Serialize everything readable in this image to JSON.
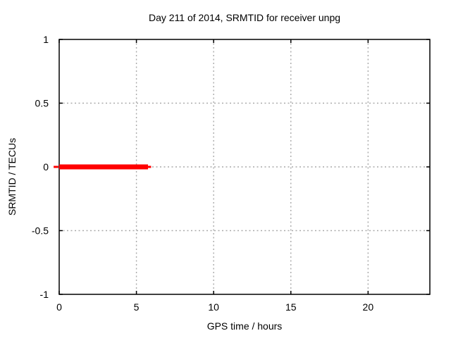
{
  "chart_data": {
    "type": "line",
    "title": "Day 211 of 2014, SRMTID for receiver unpg",
    "xlabel": "GPS time / hours",
    "ylabel": "SRMTID / TECUs",
    "xlim": [
      0,
      24
    ],
    "ylim": [
      -1,
      1
    ],
    "xticks": [
      0,
      5,
      10,
      15,
      20
    ],
    "xtick_labels": [
      "0",
      "5",
      "10",
      "15",
      "20"
    ],
    "yticks": [
      -1,
      -0.5,
      0,
      0.5,
      1
    ],
    "ytick_labels": [
      "-1",
      "-0.5",
      "0",
      "0.5",
      "1"
    ],
    "grid": true,
    "grid_color": "#a9a9a9",
    "border_color": "#000000",
    "background_color": "#ffffff",
    "legend": "none",
    "series": [
      {
        "name": "SRMTID",
        "color": "#ff0000",
        "y_value": 0,
        "x_start": 0,
        "x_end": 5.95,
        "segments": [
          {
            "x0": -0.36,
            "x1": -0.05,
            "y": 0,
            "thickness": 3
          },
          {
            "x0": 0,
            "x1": 5.75,
            "y": 0,
            "thickness": 7
          },
          {
            "x0": 5.75,
            "x1": 5.95,
            "y": 0,
            "thickness": 3
          }
        ]
      }
    ]
  }
}
